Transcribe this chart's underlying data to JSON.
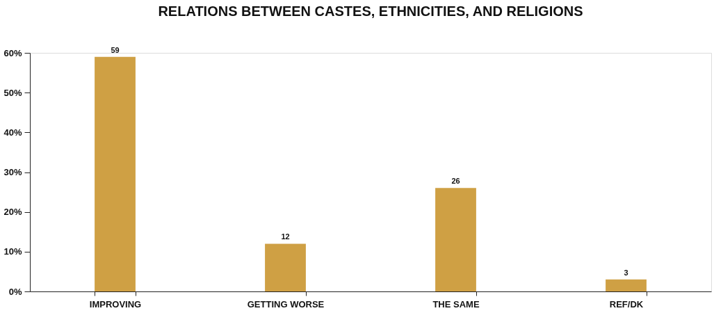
{
  "chart_data": {
    "type": "bar",
    "title": "RELATIONS BETWEEN CASTES, ETHNICITIES, AND RELIGIONS",
    "categories": [
      "IMPROVING",
      "GETTING WORSE",
      "THE SAME",
      "REF/DK"
    ],
    "values": [
      59,
      12,
      26,
      3
    ],
    "color": "#cfa044",
    "ylim": [
      0,
      60
    ],
    "yticks": [
      {
        "value": 0,
        "label": "0%"
      },
      {
        "value": 10,
        "label": "10%"
      },
      {
        "value": 20,
        "label": "20%"
      },
      {
        "value": 30,
        "label": "30%"
      },
      {
        "value": 40,
        "label": "40%"
      },
      {
        "value": 50,
        "label": "50%"
      },
      {
        "value": 60,
        "label": "60%"
      }
    ],
    "data_labels": true,
    "grid": false
  }
}
